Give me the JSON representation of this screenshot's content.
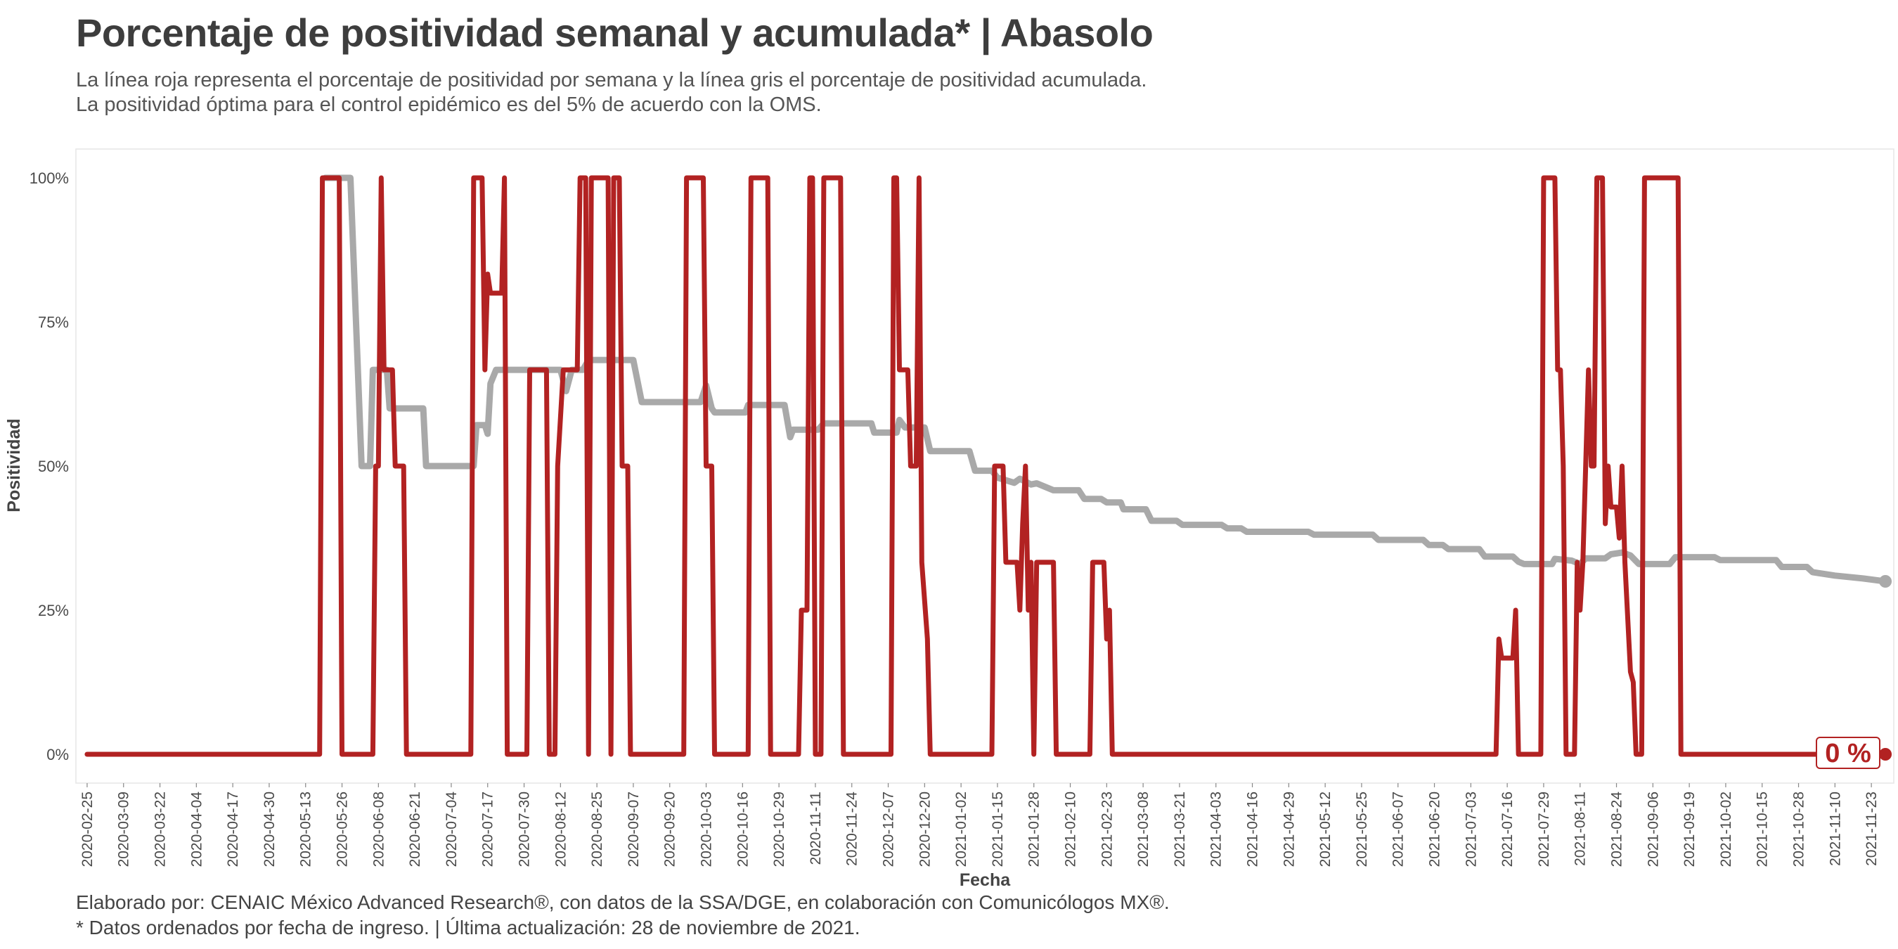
{
  "title": "Porcentaje de positividad semanal y acumulada* | Abasolo",
  "subtitle": [
    "La línea roja representa el porcentaje de positividad por semana y la línea gris el porcentaje de positividad acumulada.",
    "La positividad óptima para el control epidémico es del 5% de acuerdo con la OMS."
  ],
  "caption": [
    "Elaborado por: CENAIC México Advanced Research®, con datos de la SSA/DGE, en colaboración con Comunicólogos MX®.",
    "* Datos ordenados por fecha de ingreso. | Última actualización: 28 de noviembre de 2021."
  ],
  "colors": {
    "weekly": "#b22222",
    "cumulative": "#a9a9a9",
    "text": "#3d3d3d"
  },
  "chart_data": {
    "type": "line",
    "xlabel": "Fecha",
    "ylabel": "Positividad",
    "x_range": [
      "2020-02-21",
      "2021-12-01"
    ],
    "ylim": [
      -0.05,
      1.05
    ],
    "grid": false,
    "y_ticks": [
      {
        "value": 0,
        "label": "0%"
      },
      {
        "value": 0.25,
        "label": "25%"
      },
      {
        "value": 0.5,
        "label": "50%"
      },
      {
        "value": 0.75,
        "label": "75%"
      },
      {
        "value": 1,
        "label": "100%"
      }
    ],
    "x_ticks": [
      "2020-02-25",
      "2020-03-09",
      "2020-03-22",
      "2020-04-04",
      "2020-04-17",
      "2020-04-30",
      "2020-05-13",
      "2020-05-26",
      "2020-06-08",
      "2020-06-21",
      "2020-07-04",
      "2020-07-17",
      "2020-07-30",
      "2020-08-12",
      "2020-08-25",
      "2020-09-07",
      "2020-09-20",
      "2020-10-03",
      "2020-10-16",
      "2020-10-29",
      "2020-11-11",
      "2020-11-24",
      "2020-12-07",
      "2020-12-20",
      "2021-01-02",
      "2021-01-15",
      "2021-01-28",
      "2021-02-10",
      "2021-02-23",
      "2021-03-08",
      "2021-03-21",
      "2021-04-03",
      "2021-04-16",
      "2021-04-29",
      "2021-05-12",
      "2021-05-25",
      "2021-06-07",
      "2021-06-20",
      "2021-07-03",
      "2021-07-16",
      "2021-07-29",
      "2021-08-11",
      "2021-08-24",
      "2021-09-06",
      "2021-09-19",
      "2021-10-02",
      "2021-10-15",
      "2021-10-28",
      "2021-11-10",
      "2021-11-23"
    ],
    "end_label": "0 %",
    "series": [
      {
        "id": "cumulative",
        "points": [
          [
            "2020-05-20",
            1
          ],
          [
            "2020-05-29",
            1
          ],
          [
            "2020-06-02",
            0.5
          ],
          [
            "2020-06-05",
            0.5
          ],
          [
            "2020-06-06",
            0.667
          ],
          [
            "2020-06-11",
            0.667
          ],
          [
            "2020-06-12",
            0.6
          ],
          [
            "2020-06-24",
            0.6
          ],
          [
            "2020-06-25",
            0.5
          ],
          [
            "2020-07-12",
            0.5
          ],
          [
            "2020-07-13",
            0.571
          ],
          [
            "2020-07-16",
            0.571
          ],
          [
            "2020-07-17",
            0.556
          ],
          [
            "2020-07-18",
            0.643
          ],
          [
            "2020-07-20",
            0.667
          ],
          [
            "2020-08-12",
            0.667
          ],
          [
            "2020-08-14",
            0.63
          ],
          [
            "2020-08-16",
            0.667
          ],
          [
            "2020-08-20",
            0.667
          ],
          [
            "2020-08-22",
            0.684
          ],
          [
            "2020-09-07",
            0.684
          ],
          [
            "2020-09-10",
            0.611
          ],
          [
            "2020-10-01",
            0.611
          ],
          [
            "2020-10-03",
            0.64
          ],
          [
            "2020-10-05",
            0.6
          ],
          [
            "2020-10-06",
            0.593
          ],
          [
            "2020-10-17",
            0.593
          ],
          [
            "2020-10-18",
            0.606
          ],
          [
            "2020-10-31",
            0.606
          ],
          [
            "2020-11-02",
            0.55
          ],
          [
            "2020-11-03",
            0.563
          ],
          [
            "2020-11-12",
            0.563
          ],
          [
            "2020-11-14",
            0.574
          ],
          [
            "2020-12-01",
            0.574
          ],
          [
            "2020-12-02",
            0.558
          ],
          [
            "2020-12-10",
            0.558
          ],
          [
            "2020-12-11",
            0.58
          ],
          [
            "2020-12-13",
            0.567
          ],
          [
            "2020-12-20",
            0.567
          ],
          [
            "2020-12-22",
            0.526
          ],
          [
            "2021-01-05",
            0.526
          ],
          [
            "2021-01-07",
            0.492
          ],
          [
            "2021-01-13",
            0.492
          ],
          [
            "2021-01-15",
            0.48
          ],
          [
            "2021-01-21",
            0.471
          ],
          [
            "2021-01-23",
            0.478
          ],
          [
            "2021-01-27",
            0.468
          ],
          [
            "2021-01-29",
            0.47
          ],
          [
            "2021-02-04",
            0.458
          ],
          [
            "2021-02-13",
            0.458
          ],
          [
            "2021-02-15",
            0.443
          ],
          [
            "2021-02-21",
            0.443
          ],
          [
            "2021-02-23",
            0.437
          ],
          [
            "2021-02-28",
            0.437
          ],
          [
            "2021-03-01",
            0.425
          ],
          [
            "2021-03-09",
            0.425
          ],
          [
            "2021-03-11",
            0.405
          ],
          [
            "2021-03-20",
            0.405
          ],
          [
            "2021-03-22",
            0.398
          ],
          [
            "2021-04-05",
            0.398
          ],
          [
            "2021-04-07",
            0.392
          ],
          [
            "2021-04-12",
            0.392
          ],
          [
            "2021-04-14",
            0.386
          ],
          [
            "2021-05-06",
            0.386
          ],
          [
            "2021-05-08",
            0.381
          ],
          [
            "2021-05-29",
            0.381
          ],
          [
            "2021-05-31",
            0.372
          ],
          [
            "2021-06-16",
            0.372
          ],
          [
            "2021-06-18",
            0.363
          ],
          [
            "2021-06-23",
            0.363
          ],
          [
            "2021-06-25",
            0.356
          ],
          [
            "2021-07-06",
            0.356
          ],
          [
            "2021-07-08",
            0.343
          ],
          [
            "2021-07-18",
            0.343
          ],
          [
            "2021-07-20",
            0.334
          ],
          [
            "2021-07-22",
            0.33
          ],
          [
            "2021-08-01",
            0.33
          ],
          [
            "2021-08-02",
            0.339
          ],
          [
            "2021-08-08",
            0.336
          ],
          [
            "2021-08-11",
            0.33
          ],
          [
            "2021-08-13",
            0.34
          ],
          [
            "2021-08-20",
            0.34
          ],
          [
            "2021-08-22",
            0.347
          ],
          [
            "2021-08-26",
            0.35
          ],
          [
            "2021-08-29",
            0.345
          ],
          [
            "2021-09-01",
            0.33
          ],
          [
            "2021-09-12",
            0.33
          ],
          [
            "2021-09-14",
            0.342
          ],
          [
            "2021-09-28",
            0.342
          ],
          [
            "2021-09-30",
            0.337
          ],
          [
            "2021-10-20",
            0.337
          ],
          [
            "2021-10-22",
            0.325
          ],
          [
            "2021-10-31",
            0.325
          ],
          [
            "2021-11-02",
            0.316
          ],
          [
            "2021-11-10",
            0.31
          ],
          [
            "2021-11-20",
            0.305
          ],
          [
            "2021-11-28",
            0.3
          ]
        ]
      },
      {
        "id": "weekly",
        "points": [
          [
            "2020-02-25",
            0
          ],
          [
            "2020-05-18",
            0
          ],
          [
            "2020-05-19",
            1
          ],
          [
            "2020-05-25",
            1
          ],
          [
            "2020-05-26",
            0
          ],
          [
            "2020-06-06",
            0
          ],
          [
            "2020-06-07",
            0.5
          ],
          [
            "2020-06-08",
            0.5
          ],
          [
            "2020-06-09",
            1
          ],
          [
            "2020-06-10",
            0.667
          ],
          [
            "2020-06-13",
            0.667
          ],
          [
            "2020-06-14",
            0.5
          ],
          [
            "2020-06-17",
            0.5
          ],
          [
            "2020-06-18",
            0
          ],
          [
            "2020-07-11",
            0
          ],
          [
            "2020-07-12",
            1
          ],
          [
            "2020-07-15",
            1
          ],
          [
            "2020-07-16",
            0.667
          ],
          [
            "2020-07-17",
            0.833
          ],
          [
            "2020-07-18",
            0.8
          ],
          [
            "2020-07-22",
            0.8
          ],
          [
            "2020-07-23",
            1
          ],
          [
            "2020-07-24",
            0
          ],
          [
            "2020-07-31",
            0
          ],
          [
            "2020-08-01",
            0.667
          ],
          [
            "2020-08-07",
            0.667
          ],
          [
            "2020-08-08",
            0
          ],
          [
            "2020-08-10",
            0
          ],
          [
            "2020-08-11",
            0.5
          ],
          [
            "2020-08-13",
            0.667
          ],
          [
            "2020-08-18",
            0.667
          ],
          [
            "2020-08-19",
            1
          ],
          [
            "2020-08-21",
            1
          ],
          [
            "2020-08-22",
            0
          ],
          [
            "2020-08-23",
            1
          ],
          [
            "2020-08-29",
            1
          ],
          [
            "2020-08-30",
            0
          ],
          [
            "2020-08-31",
            1
          ],
          [
            "2020-09-02",
            1
          ],
          [
            "2020-09-03",
            0.5
          ],
          [
            "2020-09-05",
            0.5
          ],
          [
            "2020-09-06",
            0
          ],
          [
            "2020-09-25",
            0
          ],
          [
            "2020-09-26",
            1
          ],
          [
            "2020-10-02",
            1
          ],
          [
            "2020-10-03",
            0.5
          ],
          [
            "2020-10-05",
            0.5
          ],
          [
            "2020-10-06",
            0
          ],
          [
            "2020-10-18",
            0
          ],
          [
            "2020-10-19",
            1
          ],
          [
            "2020-10-25",
            1
          ],
          [
            "2020-10-26",
            0
          ],
          [
            "2020-11-05",
            0
          ],
          [
            "2020-11-06",
            0.25
          ],
          [
            "2020-11-08",
            0.25
          ],
          [
            "2020-11-09",
            1
          ],
          [
            "2020-11-10",
            1
          ],
          [
            "2020-11-11",
            0
          ],
          [
            "2020-11-13",
            0
          ],
          [
            "2020-11-14",
            1
          ],
          [
            "2020-11-20",
            1
          ],
          [
            "2020-11-21",
            0
          ],
          [
            "2020-12-08",
            0
          ],
          [
            "2020-12-09",
            1
          ],
          [
            "2020-12-10",
            1
          ],
          [
            "2020-12-11",
            0.667
          ],
          [
            "2020-12-14",
            0.667
          ],
          [
            "2020-12-15",
            0.5
          ],
          [
            "2020-12-17",
            0.5
          ],
          [
            "2020-12-18",
            1
          ],
          [
            "2020-12-19",
            0.333
          ],
          [
            "2020-12-21",
            0.2
          ],
          [
            "2020-12-22",
            0
          ],
          [
            "2021-01-13",
            0
          ],
          [
            "2021-01-14",
            0.5
          ],
          [
            "2021-01-17",
            0.5
          ],
          [
            "2021-01-18",
            0.333
          ],
          [
            "2021-01-22",
            0.333
          ],
          [
            "2021-01-23",
            0.25
          ],
          [
            "2021-01-24",
            0.4
          ],
          [
            "2021-01-25",
            0.5
          ],
          [
            "2021-01-26",
            0.25
          ],
          [
            "2021-01-27",
            0.333
          ],
          [
            "2021-01-28",
            0
          ],
          [
            "2021-01-29",
            0.333
          ],
          [
            "2021-02-04",
            0.333
          ],
          [
            "2021-02-05",
            0
          ],
          [
            "2021-02-17",
            0
          ],
          [
            "2021-02-18",
            0.333
          ],
          [
            "2021-02-22",
            0.333
          ],
          [
            "2021-02-23",
            0.2
          ],
          [
            "2021-02-24",
            0.25
          ],
          [
            "2021-02-25",
            0
          ],
          [
            "2021-07-12",
            0
          ],
          [
            "2021-07-13",
            0.2
          ],
          [
            "2021-07-14",
            0.167
          ],
          [
            "2021-07-18",
            0.167
          ],
          [
            "2021-07-19",
            0.25
          ],
          [
            "2021-07-20",
            0
          ],
          [
            "2021-07-28",
            0
          ],
          [
            "2021-07-29",
            1
          ],
          [
            "2021-08-02",
            1
          ],
          [
            "2021-08-03",
            0.667
          ],
          [
            "2021-08-04",
            0.667
          ],
          [
            "2021-08-05",
            0.5
          ],
          [
            "2021-08-06",
            0
          ],
          [
            "2021-08-09",
            0
          ],
          [
            "2021-08-10",
            0.333
          ],
          [
            "2021-08-11",
            0.25
          ],
          [
            "2021-08-12",
            0.333
          ],
          [
            "2021-08-13",
            0.5
          ],
          [
            "2021-08-14",
            0.667
          ],
          [
            "2021-08-15",
            0.5
          ],
          [
            "2021-08-16",
            0.5
          ],
          [
            "2021-08-17",
            1
          ],
          [
            "2021-08-19",
            1
          ],
          [
            "2021-08-20",
            0.4
          ],
          [
            "2021-08-21",
            0.5
          ],
          [
            "2021-08-22",
            0.429
          ],
          [
            "2021-08-24",
            0.429
          ],
          [
            "2021-08-25",
            0.375
          ],
          [
            "2021-08-26",
            0.5
          ],
          [
            "2021-08-27",
            0.333
          ],
          [
            "2021-08-29",
            0.143
          ],
          [
            "2021-08-30",
            0.125
          ],
          [
            "2021-08-31",
            0
          ],
          [
            "2021-09-02",
            0
          ],
          [
            "2021-09-03",
            1
          ],
          [
            "2021-09-15",
            1
          ],
          [
            "2021-09-16",
            0
          ],
          [
            "2021-11-28",
            0
          ]
        ]
      }
    ]
  }
}
